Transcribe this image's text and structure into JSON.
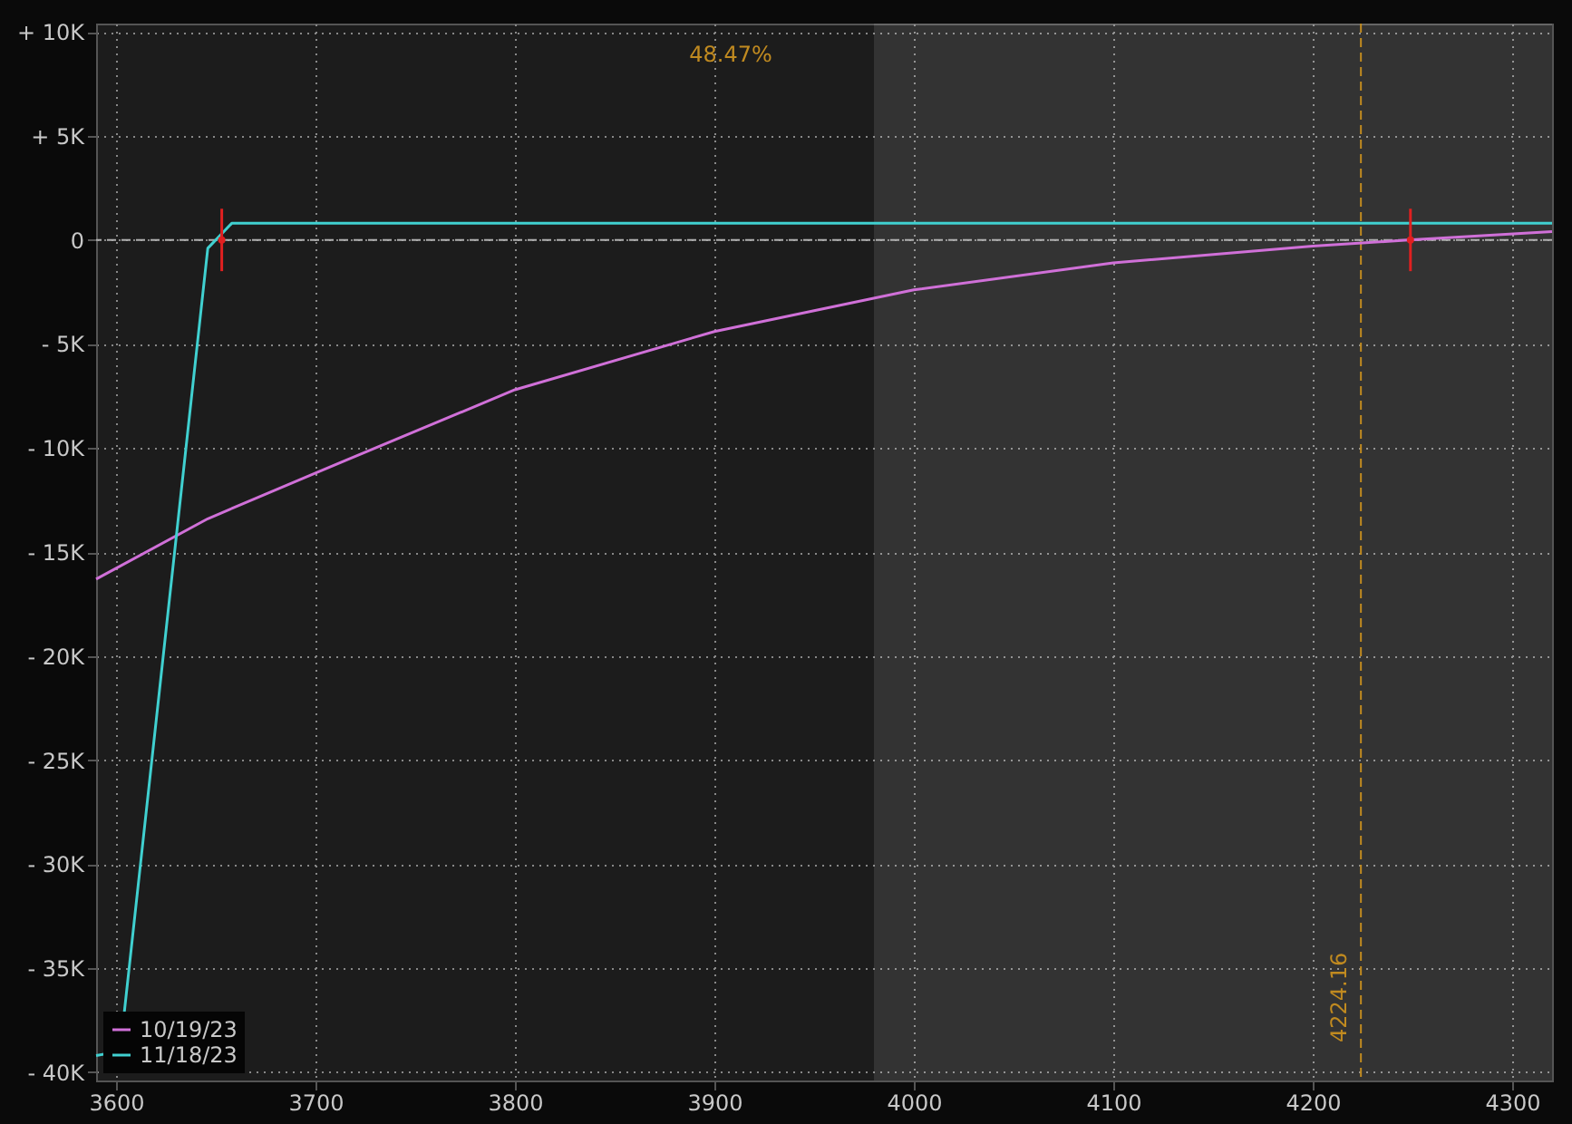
{
  "chart_data": {
    "type": "line",
    "xlim": [
      3590,
      4320
    ],
    "ylim": [
      -40400,
      10400
    ],
    "xticks": [
      3600,
      3700,
      3800,
      3900,
      4000,
      4100,
      4200,
      4300
    ],
    "yticks": [
      {
        "value": 10000,
        "label": "+ 10K"
      },
      {
        "value": 5000,
        "label": "+ 5K"
      },
      0,
      {
        "value": -5000,
        "label": "- 5K"
      },
      {
        "value": -10000,
        "label": "- 10K"
      },
      {
        "value": -15000,
        "label": "- 15K"
      },
      {
        "value": -20000,
        "label": "- 20K"
      },
      {
        "value": -25000,
        "label": "- 25K"
      },
      {
        "value": -30000,
        "label": "- 30K"
      },
      {
        "value": -35000,
        "label": "- 35K"
      },
      {
        "value": -40000,
        "label": "- 40K"
      }
    ],
    "grid": true,
    "legend": "bottom left",
    "series": [
      {
        "name": "10/19/23",
        "color": "#d070d8",
        "x": [
          3590,
          3646,
          3700,
          3800,
          3900,
          4000,
          4100,
          4200,
          4248,
          4320
        ],
        "values": [
          -16300,
          -13400,
          -11200,
          -7200,
          -4400,
          -2400,
          -1100,
          -300,
          0,
          400
        ]
      },
      {
        "name": "11/18/23",
        "color": "#40d0d0",
        "x": [
          3590,
          3602,
          3646,
          3658,
          4320
        ],
        "values": [
          -39200,
          -39000,
          -400,
          800,
          800
        ]
      },
      {
        "color": "#e02020",
        "type": "scatter",
        "marker": "circle",
        "x": [
          3653,
          4249
        ],
        "values": [
          0,
          0
        ],
        "errors": [
          1500,
          1500
        ]
      }
    ],
    "ref_lines": [
      {
        "axis": "y",
        "value": 0,
        "color": "#b0b0b0",
        "line_style": "dashed"
      },
      {
        "axis": "x",
        "value": 4224.16,
        "label": "4224.16",
        "color": "#c08a20",
        "line_style": "dashed"
      }
    ],
    "bands": [
      {
        "axis": "x",
        "from": 3980,
        "to": 4320,
        "color": "#ffffff"
      }
    ],
    "annotations": [
      "48.47%"
    ]
  }
}
